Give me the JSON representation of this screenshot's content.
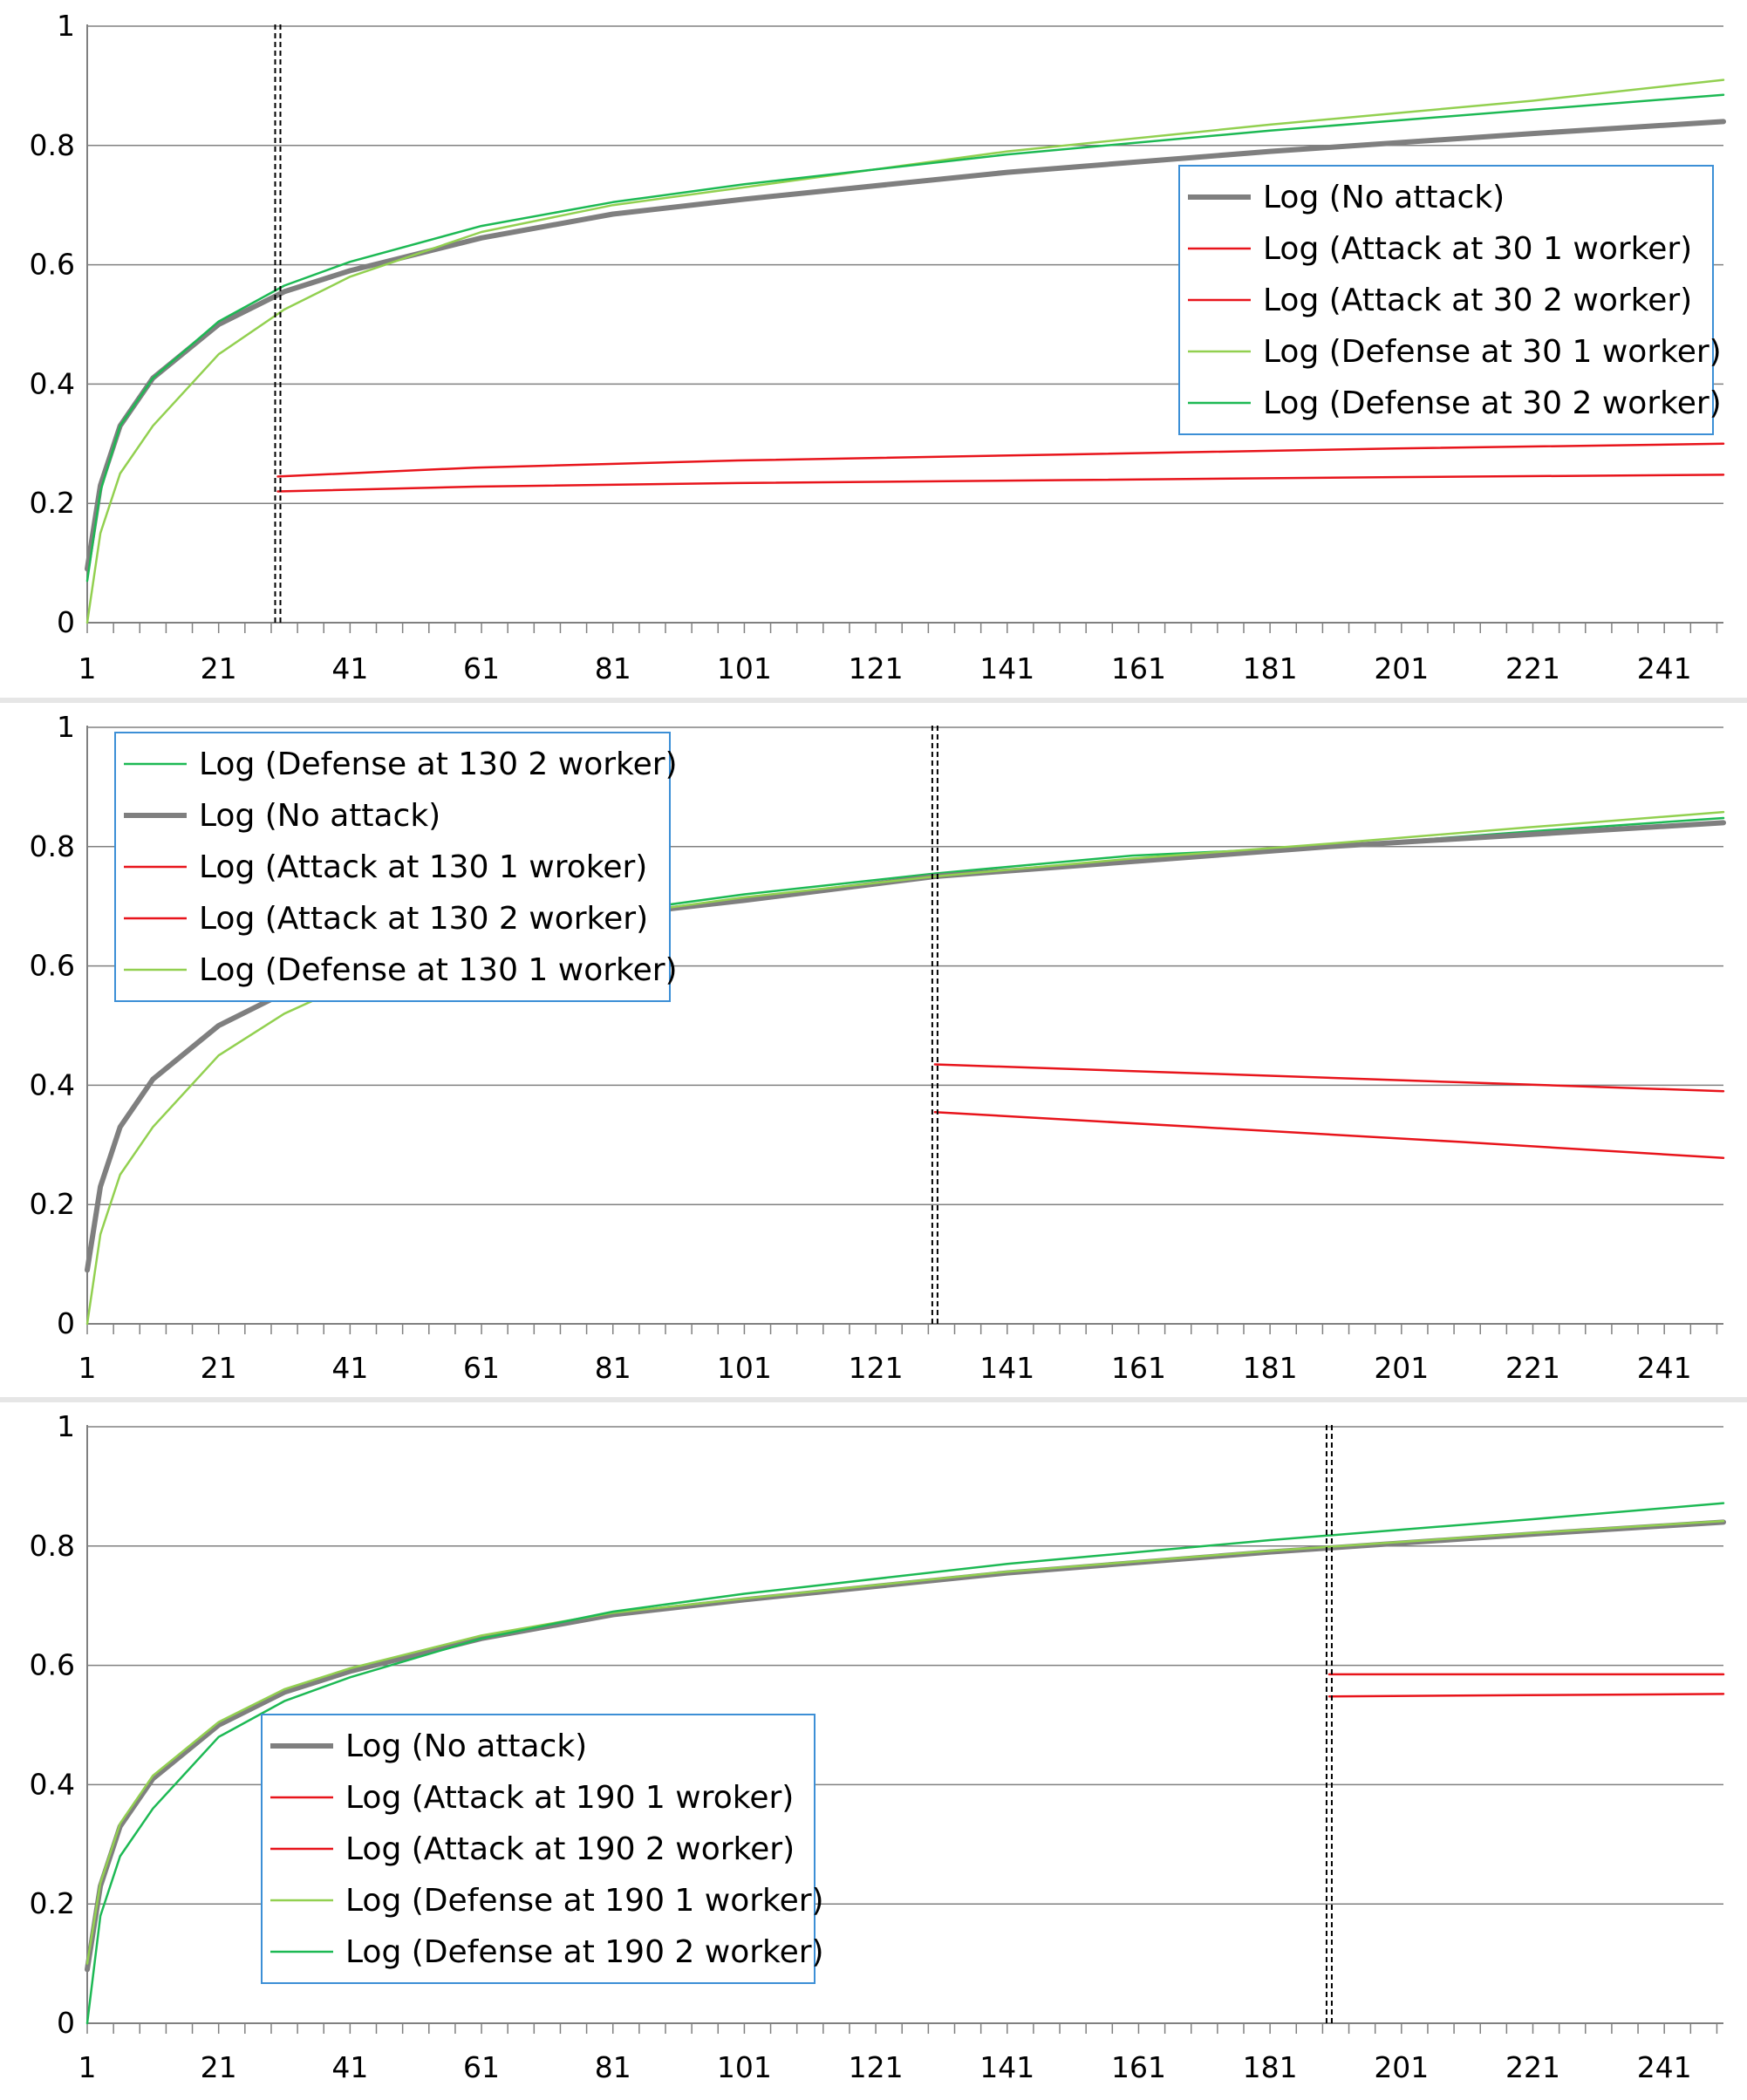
{
  "colors": {
    "no_attack": "#7f7f7f",
    "attack": "#e8141b",
    "defense_1": "#92d050",
    "defense_2": "#1db954",
    "legend_border": "#3c8fd6",
    "grid": "#808080",
    "axis": "#808080"
  },
  "chart_data": [
    {
      "type": "line",
      "title": "",
      "xlabel": "",
      "ylabel": "",
      "xlim": [
        1,
        250
      ],
      "ylim": [
        0,
        1
      ],
      "x_ticks": [
        "1",
        "21",
        "41",
        "61",
        "81",
        "101",
        "121",
        "141",
        "161",
        "181",
        "201",
        "221",
        "241"
      ],
      "y_ticks": [
        "0",
        "0.2",
        "0.4",
        "0.6",
        "0.8",
        "1"
      ],
      "grid": "horizontal",
      "event_x": 30,
      "legend_position": "upper-right",
      "legend": [
        "Log (No attack)",
        "Log (Attack at 30 1 worker)",
        "Log (Attack at 30 2 worker)",
        "Log (Defense at 30 1 worker)",
        "Log (Defense at 30 2 worker)"
      ],
      "series": [
        {
          "name": "Log (No attack)",
          "style": "no_attack",
          "points": [
            [
              1,
              0.09
            ],
            [
              3,
              0.23
            ],
            [
              6,
              0.33
            ],
            [
              11,
              0.41
            ],
            [
              21,
              0.5
            ],
            [
              31,
              0.555
            ],
            [
              41,
              0.59
            ],
            [
              61,
              0.645
            ],
            [
              81,
              0.685
            ],
            [
              101,
              0.71
            ],
            [
              141,
              0.755
            ],
            [
              181,
              0.79
            ],
            [
              221,
              0.82
            ],
            [
              250,
              0.84
            ]
          ]
        },
        {
          "name": "Log (Attack at 30 1 worker)",
          "style": "attack",
          "points": [
            [
              30,
              0.22
            ],
            [
              60,
              0.228
            ],
            [
              100,
              0.234
            ],
            [
              150,
              0.239
            ],
            [
              200,
              0.244
            ],
            [
              250,
              0.248
            ]
          ]
        },
        {
          "name": "Log (Attack at 30 2 worker)",
          "style": "attack",
          "points": [
            [
              30,
              0.245
            ],
            [
              60,
              0.26
            ],
            [
              100,
              0.272
            ],
            [
              150,
              0.282
            ],
            [
              200,
              0.292
            ],
            [
              250,
              0.3
            ]
          ]
        },
        {
          "name": "Log (Defense at 30 1 worker)",
          "style": "defense_1",
          "points": [
            [
              1,
              0
            ],
            [
              3,
              0.15
            ],
            [
              6,
              0.25
            ],
            [
              11,
              0.33
            ],
            [
              21,
              0.45
            ],
            [
              31,
              0.525
            ],
            [
              41,
              0.58
            ],
            [
              61,
              0.655
            ],
            [
              81,
              0.7
            ],
            [
              101,
              0.73
            ],
            [
              141,
              0.79
            ],
            [
              181,
              0.835
            ],
            [
              221,
              0.875
            ],
            [
              250,
              0.91
            ]
          ]
        },
        {
          "name": "Log (Defense at 30 2 worker)",
          "style": "defense_2",
          "points": [
            [
              1,
              0.07
            ],
            [
              3,
              0.22
            ],
            [
              6,
              0.33
            ],
            [
              11,
              0.41
            ],
            [
              21,
              0.505
            ],
            [
              31,
              0.565
            ],
            [
              41,
              0.605
            ],
            [
              61,
              0.665
            ],
            [
              81,
              0.705
            ],
            [
              101,
              0.735
            ],
            [
              141,
              0.785
            ],
            [
              181,
              0.825
            ],
            [
              221,
              0.86
            ],
            [
              250,
              0.885
            ]
          ]
        }
      ]
    },
    {
      "type": "line",
      "title": "",
      "xlabel": "",
      "ylabel": "",
      "xlim": [
        1,
        250
      ],
      "ylim": [
        0,
        1
      ],
      "x_ticks": [
        "1",
        "21",
        "41",
        "61",
        "81",
        "101",
        "121",
        "141",
        "161",
        "181",
        "201",
        "221",
        "241"
      ],
      "y_ticks": [
        "0",
        "0.2",
        "0.4",
        "0.6",
        "0.8",
        "1"
      ],
      "grid": "horizontal",
      "event_x": 130,
      "legend_position": "upper-left",
      "legend": [
        "Log (Defense at 130 2 worker)",
        "Log (No attack)",
        "Log (Attack at 130 1 wroker)",
        "Log (Attack at 130 2 worker)",
        "Log (Defense at 130 1 worker)"
      ],
      "series": [
        {
          "name": "Log (Defense at 130 2 worker)",
          "style": "defense_2",
          "points": [
            [
              1,
              0.1
            ],
            [
              3,
              0.23
            ],
            [
              6,
              0.33
            ],
            [
              11,
              0.41
            ],
            [
              21,
              0.5
            ],
            [
              31,
              0.555
            ],
            [
              41,
              0.595
            ],
            [
              61,
              0.65
            ],
            [
              81,
              0.69
            ],
            [
              101,
              0.72
            ],
            [
              130,
              0.755
            ],
            [
              160,
              0.785
            ],
            [
              190,
              0.8
            ],
            [
              220,
              0.825
            ],
            [
              250,
              0.848
            ]
          ]
        },
        {
          "name": "Log (No attack)",
          "style": "no_attack",
          "points": [
            [
              1,
              0.09
            ],
            [
              3,
              0.23
            ],
            [
              6,
              0.33
            ],
            [
              11,
              0.41
            ],
            [
              21,
              0.5
            ],
            [
              31,
              0.555
            ],
            [
              41,
              0.59
            ],
            [
              61,
              0.645
            ],
            [
              81,
              0.685
            ],
            [
              101,
              0.71
            ],
            [
              130,
              0.75
            ],
            [
              160,
              0.775
            ],
            [
              190,
              0.8
            ],
            [
              220,
              0.82
            ],
            [
              250,
              0.84
            ]
          ]
        },
        {
          "name": "Log (Attack at 130 1 wroker)",
          "style": "attack",
          "points": [
            [
              130,
              0.435
            ],
            [
              170,
              0.42
            ],
            [
              210,
              0.405
            ],
            [
              250,
              0.39
            ]
          ]
        },
        {
          "name": "Log (Attack at 130 2 worker)",
          "style": "attack",
          "points": [
            [
              130,
              0.355
            ],
            [
              170,
              0.33
            ],
            [
              210,
              0.305
            ],
            [
              250,
              0.278
            ]
          ]
        },
        {
          "name": "Log (Defense at 130 1 worker)",
          "style": "defense_1",
          "points": [
            [
              1,
              0
            ],
            [
              3,
              0.15
            ],
            [
              6,
              0.25
            ],
            [
              11,
              0.33
            ],
            [
              21,
              0.45
            ],
            [
              31,
              0.52
            ],
            [
              41,
              0.57
            ],
            [
              61,
              0.635
            ],
            [
              81,
              0.685
            ],
            [
              101,
              0.715
            ],
            [
              130,
              0.75
            ],
            [
              160,
              0.78
            ],
            [
              190,
              0.805
            ],
            [
              220,
              0.832
            ],
            [
              250,
              0.858
            ]
          ]
        }
      ]
    },
    {
      "type": "line",
      "title": "",
      "xlabel": "",
      "ylabel": "",
      "xlim": [
        1,
        250
      ],
      "ylim": [
        0,
        1
      ],
      "x_ticks": [
        "1",
        "21",
        "41",
        "61",
        "81",
        "101",
        "121",
        "141",
        "161",
        "181",
        "201",
        "221",
        "241"
      ],
      "y_ticks": [
        "0",
        "0.2",
        "0.4",
        "0.6",
        "0.8",
        "1"
      ],
      "grid": "horizontal",
      "event_x": 190,
      "legend_position": "lower-left",
      "legend": [
        "Log (No attack)",
        "Log (Attack at 190 1 wroker)",
        "Log (Attack at 190 2 worker)",
        "Log (Defense at 190 1 worker)",
        "Log (Defense at 190 2 worker)"
      ],
      "series": [
        {
          "name": "Log (No attack)",
          "style": "no_attack",
          "points": [
            [
              1,
              0.09
            ],
            [
              3,
              0.23
            ],
            [
              6,
              0.33
            ],
            [
              11,
              0.41
            ],
            [
              21,
              0.5
            ],
            [
              31,
              0.555
            ],
            [
              41,
              0.59
            ],
            [
              61,
              0.645
            ],
            [
              81,
              0.685
            ],
            [
              101,
              0.71
            ],
            [
              141,
              0.755
            ],
            [
              181,
              0.79
            ],
            [
              221,
              0.82
            ],
            [
              250,
              0.84
            ]
          ]
        },
        {
          "name": "Log (Attack at 190 1 wroker)",
          "style": "attack",
          "points": [
            [
              190,
              0.585
            ],
            [
              220,
              0.585
            ],
            [
              250,
              0.585
            ]
          ]
        },
        {
          "name": "Log (Attack at 190 2 worker)",
          "style": "attack",
          "points": [
            [
              190,
              0.548
            ],
            [
              220,
              0.55
            ],
            [
              250,
              0.552
            ]
          ]
        },
        {
          "name": "Log (Defense at 190 1 worker)",
          "style": "defense_1",
          "points": [
            [
              1,
              0.1
            ],
            [
              3,
              0.235
            ],
            [
              6,
              0.335
            ],
            [
              11,
              0.415
            ],
            [
              21,
              0.505
            ],
            [
              31,
              0.56
            ],
            [
              41,
              0.595
            ],
            [
              61,
              0.65
            ],
            [
              81,
              0.688
            ],
            [
              101,
              0.712
            ],
            [
              141,
              0.757
            ],
            [
              181,
              0.792
            ],
            [
              221,
              0.822
            ],
            [
              250,
              0.842
            ]
          ]
        },
        {
          "name": "Log (Defense at 190 2 worker)",
          "style": "defense_2",
          "points": [
            [
              1,
              0
            ],
            [
              3,
              0.18
            ],
            [
              6,
              0.28
            ],
            [
              11,
              0.36
            ],
            [
              21,
              0.48
            ],
            [
              31,
              0.54
            ],
            [
              41,
              0.58
            ],
            [
              61,
              0.645
            ],
            [
              81,
              0.69
            ],
            [
              101,
              0.72
            ],
            [
              141,
              0.77
            ],
            [
              181,
              0.81
            ],
            [
              221,
              0.845
            ],
            [
              250,
              0.872
            ]
          ]
        }
      ]
    }
  ]
}
